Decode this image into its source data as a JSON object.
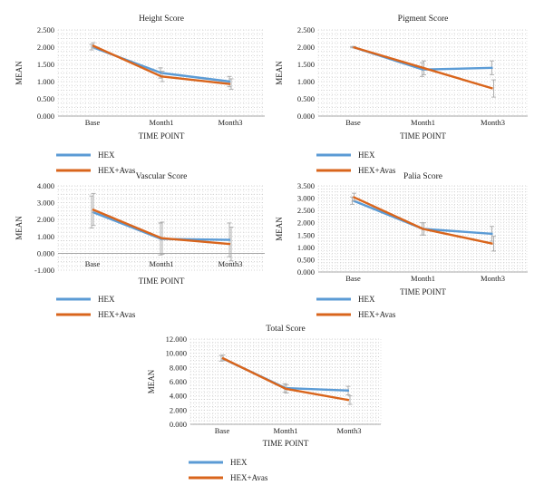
{
  "colors": {
    "hex": "#5B9BD5",
    "hex_avas": "#D9651C",
    "error_bar": "#A9A9A9",
    "grid": "#C8C8C8"
  },
  "legend": {
    "series1": "HEX",
    "series2": "HEX+Avas"
  },
  "chart_data": [
    {
      "type": "line",
      "title": "Height Score",
      "xlabel": "TIME POINT",
      "ylabel": "MEAN",
      "categories": [
        "Base",
        "Month1",
        "Month3"
      ],
      "ylim": [
        0,
        2.5
      ],
      "yticks": [
        "0.000",
        "0.500",
        "1.000",
        "1.500",
        "2.000",
        "2.500"
      ],
      "grid": true,
      "legend_position": "bottom-left",
      "series": [
        {
          "name": "HEX",
          "values": [
            2.0,
            1.25,
            1.0
          ],
          "error": [
            0.08,
            0.15,
            0.15
          ]
        },
        {
          "name": "HEX+Avas",
          "values": [
            2.05,
            1.15,
            0.93
          ],
          "error": [
            0.08,
            0.15,
            0.15
          ]
        }
      ]
    },
    {
      "type": "line",
      "title": "Pigment Score",
      "xlabel": "TIME POINT",
      "ylabel": "MEAN",
      "categories": [
        "Base",
        "Month1",
        "Month3"
      ],
      "ylim": [
        0,
        2.5
      ],
      "yticks": [
        "0.000",
        "0.500",
        "1.000",
        "1.500",
        "2.000",
        "2.500"
      ],
      "grid": true,
      "legend_position": "bottom-left",
      "series": [
        {
          "name": "HEX",
          "values": [
            2.0,
            1.35,
            1.4
          ],
          "error": [
            0.02,
            0.2,
            0.2
          ]
        },
        {
          "name": "HEX+Avas",
          "values": [
            2.0,
            1.4,
            0.8
          ],
          "error": [
            0.02,
            0.2,
            0.25
          ]
        }
      ]
    },
    {
      "type": "line",
      "title": "Vascular Score",
      "xlabel": "TIME POINT",
      "ylabel": "MEAN",
      "categories": [
        "Base",
        "Month1",
        "Month3"
      ],
      "ylim": [
        -1,
        4
      ],
      "yticks": [
        "-1.000",
        "0.000",
        "1.000",
        "2.000",
        "3.000",
        "4.000"
      ],
      "grid": true,
      "legend_position": "bottom-left",
      "series": [
        {
          "name": "HEX",
          "values": [
            2.45,
            0.85,
            0.8
          ],
          "error": [
            0.95,
            0.95,
            1.0
          ]
        },
        {
          "name": "HEX+Avas",
          "values": [
            2.6,
            0.9,
            0.55
          ],
          "error": [
            0.95,
            0.95,
            1.0
          ]
        }
      ]
    },
    {
      "type": "line",
      "title": "Palia Score",
      "xlabel": "TIME POINT",
      "ylabel": "MEAN",
      "categories": [
        "Base",
        "Month1",
        "Month3"
      ],
      "ylim": [
        0,
        3.5
      ],
      "yticks": [
        "0.000",
        "0.500",
        "1.000",
        "1.500",
        "2.000",
        "2.500",
        "3.000",
        "3.500"
      ],
      "grid": true,
      "legend_position": "bottom-left",
      "series": [
        {
          "name": "HEX",
          "values": [
            2.9,
            1.75,
            1.55
          ],
          "error": [
            0.15,
            0.25,
            0.3
          ]
        },
        {
          "name": "HEX+Avas",
          "values": [
            3.05,
            1.75,
            1.15
          ],
          "error": [
            0.15,
            0.25,
            0.3
          ]
        }
      ]
    },
    {
      "type": "line",
      "title": "Total Score",
      "xlabel": "TIME POINT",
      "ylabel": "MEAN",
      "categories": [
        "Base",
        "Month1",
        "Month3"
      ],
      "ylim": [
        0,
        12
      ],
      "yticks": [
        "0.000",
        "2.000",
        "4.000",
        "6.000",
        "8.000",
        "10.000",
        "12.000"
      ],
      "grid": true,
      "legend_position": "bottom-left",
      "series": [
        {
          "name": "HEX",
          "values": [
            9.3,
            5.1,
            4.75
          ],
          "error": [
            0.4,
            0.6,
            0.6
          ]
        },
        {
          "name": "HEX+Avas",
          "values": [
            9.35,
            5.0,
            3.4
          ],
          "error": [
            0.4,
            0.6,
            0.6
          ]
        }
      ]
    }
  ]
}
